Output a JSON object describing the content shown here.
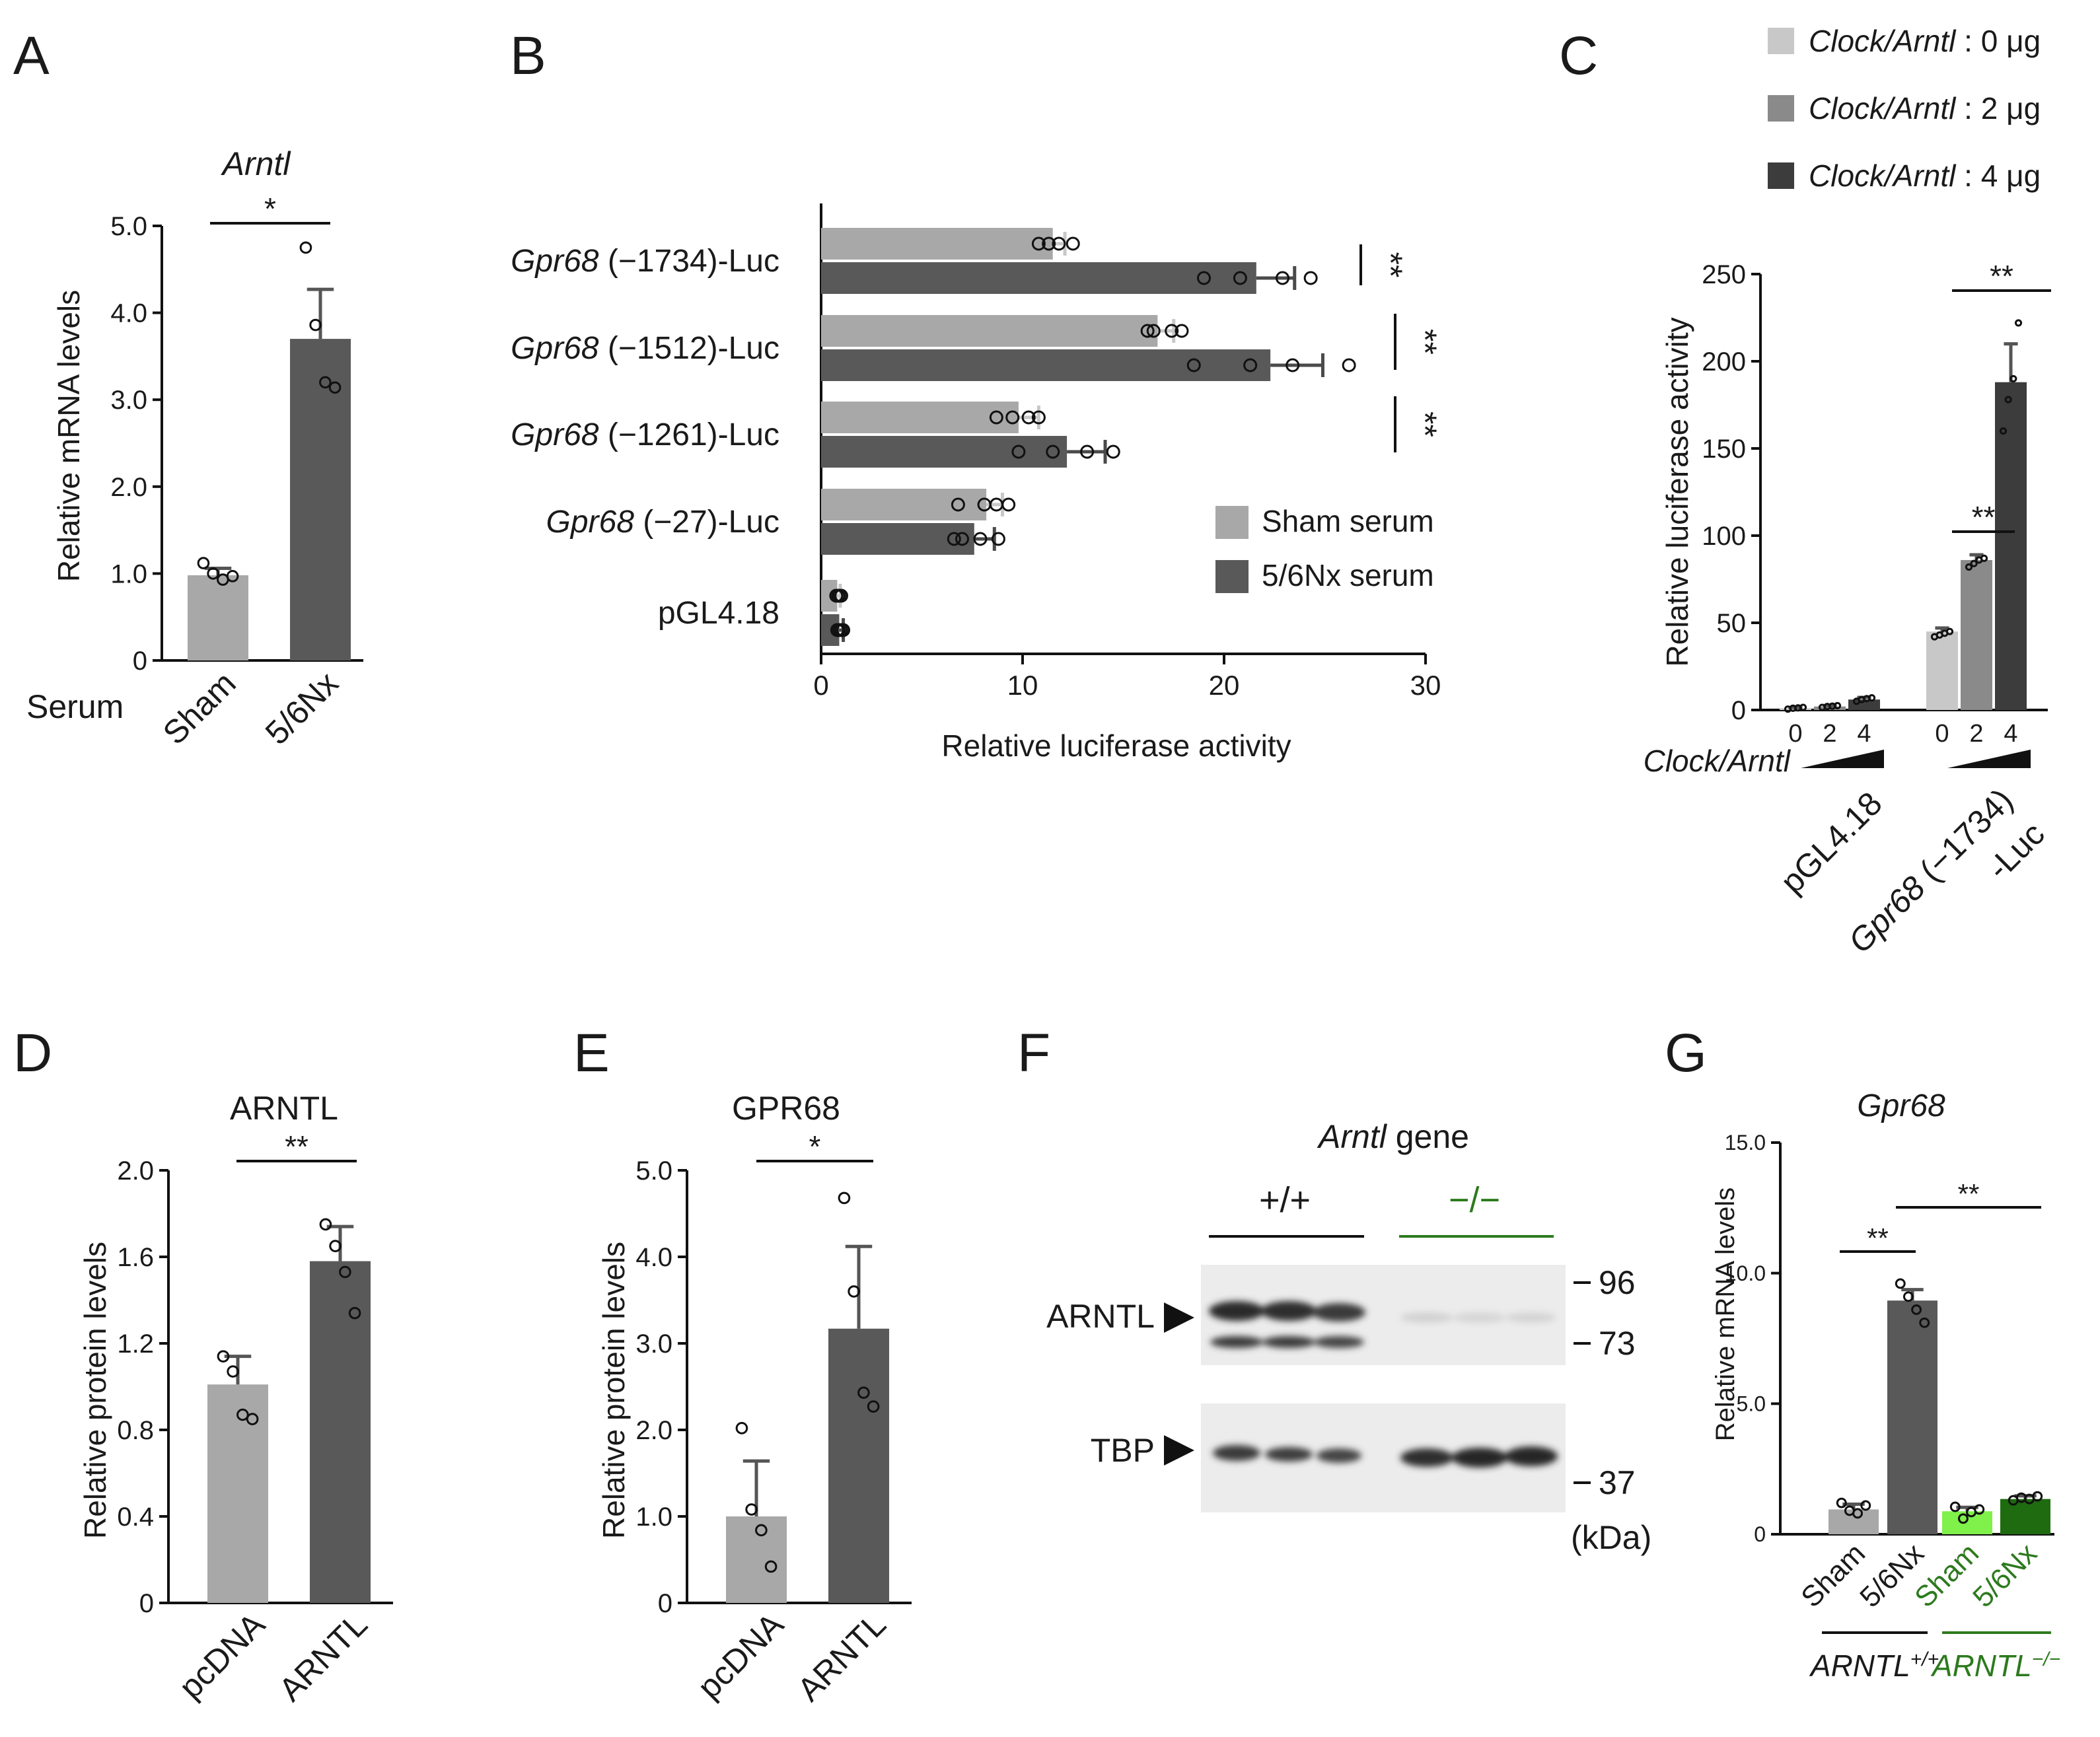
{
  "colors": {
    "sham": "#a8a8a8",
    "nx": "#595959",
    "light": "#c8c8c8",
    "mid": "#8a8a8a",
    "dark": "#3c3c3c",
    "green": "#2d7a1e",
    "greenLight": "#80f04a",
    "greenDark": "#1f6b10"
  },
  "chart_data": [
    {
      "panel": "A",
      "type": "bar",
      "title": "Arntl",
      "ylabel": "Relative mRNA levels",
      "ylim": [
        0,
        5
      ],
      "yticks": [
        "0",
        "1.0",
        "2.0",
        "3.0",
        "4.0",
        "5.0"
      ],
      "xgroup_label": "Serum",
      "categories": [
        "Sham",
        "5/6Nx"
      ],
      "values": [
        0.98,
        3.7
      ],
      "errors": [
        0.08,
        0.57
      ],
      "points": [
        [
          1.12,
          1.0,
          0.93,
          0.97
        ],
        [
          4.75,
          3.86,
          3.2,
          3.14
        ]
      ],
      "sig": "*"
    },
    {
      "panel": "B",
      "type": "bar",
      "orientation": "horizontal",
      "xlabel": "Relative luciferase activity",
      "xlim": [
        0,
        30
      ],
      "xticks": [
        "0",
        "10",
        "20",
        "30"
      ],
      "categories": [
        {
          "gene": "Gpr68",
          "rest": " (−1734)-Luc"
        },
        {
          "gene": "Gpr68",
          "rest": " (−1512)-Luc"
        },
        {
          "gene": "Gpr68",
          "rest": " (−1261)-Luc"
        },
        {
          "gene": "Gpr68",
          "rest": " (−27)-Luc"
        },
        {
          "gene": "",
          "rest": "pGL4.18"
        }
      ],
      "series": [
        {
          "name": "Sham serum",
          "values": [
            11.5,
            16.7,
            9.8,
            8.2,
            0.8
          ],
          "errors": [
            0.6,
            0.8,
            1.0,
            0.8,
            0.15
          ],
          "points": [
            [
              10.8,
              11.3,
              11.8,
              12.5
            ],
            [
              16.2,
              16.5,
              17.4,
              17.9
            ],
            [
              8.7,
              9.5,
              10.3,
              10.8
            ],
            [
              6.8,
              8.1,
              8.7,
              9.3
            ],
            [
              0.75,
              0.85,
              0.9,
              1.0
            ]
          ]
        },
        {
          "name": "5/6Nx serum",
          "values": [
            21.6,
            22.3,
            12.2,
            7.6,
            0.9
          ],
          "errors": [
            1.9,
            2.6,
            1.9,
            1.0,
            0.2
          ],
          "points": [
            [
              19.0,
              20.8,
              22.9,
              24.3
            ],
            [
              18.5,
              21.3,
              23.4,
              26.2
            ],
            [
              9.8,
              11.5,
              13.2,
              14.5
            ],
            [
              6.6,
              7.0,
              7.9,
              8.8
            ],
            [
              0.8,
              0.9,
              1.0,
              1.1
            ]
          ]
        }
      ],
      "sig": [
        "**",
        "**",
        "**"
      ]
    },
    {
      "panel": "C",
      "type": "bar",
      "ylabel": "Relative luciferase activity",
      "ylim": [
        0,
        250
      ],
      "yticks": [
        "0",
        "50",
        "100",
        "150",
        "200",
        "250"
      ],
      "xgroup_label": "Clock/Arntl",
      "doses": [
        "0",
        "2",
        "4"
      ],
      "groups": [
        {
          "label": "pGL4.18",
          "values": [
            1,
            2,
            6
          ],
          "errors": [
            0.4,
            0.5,
            1.2
          ],
          "points": [
            [
              0.5,
              1,
              1.2,
              1.5
            ],
            [
              1.5,
              2,
              2.2,
              2.5
            ],
            [
              5,
              6,
              6.5,
              7
            ]
          ]
        },
        {
          "gene": "Gpr68",
          "label": " (−1734)",
          "label2": "-Luc",
          "values": [
            45,
            86,
            188
          ],
          "errors": [
            2,
            3,
            22
          ],
          "points": [
            [
              42,
              43,
              44,
              45
            ],
            [
              82,
              84,
              86,
              87
            ],
            [
              160,
              178,
              190,
              222
            ]
          ]
        }
      ],
      "legend": [
        {
          "gene": "Clock/Arntl",
          "dose": " : 0 μg"
        },
        {
          "gene": "Clock/Arntl",
          "dose": " : 2 μg"
        },
        {
          "gene": "Clock/Arntl",
          "dose": " : 4 μg"
        }
      ],
      "sig": [
        "**",
        "**"
      ]
    },
    {
      "panel": "D",
      "type": "bar",
      "title": "ARNTL",
      "ylabel": "Relative protein levels",
      "ylim": [
        0,
        2.0
      ],
      "yticks": [
        "0",
        "0.4",
        "0.8",
        "1.2",
        "1.6",
        "2.0"
      ],
      "categories": [
        "pcDNA",
        "ARNTL"
      ],
      "values": [
        1.01,
        1.58
      ],
      "errors": [
        0.13,
        0.16
      ],
      "points": [
        [
          1.14,
          1.07,
          0.87,
          0.85
        ],
        [
          1.75,
          1.65,
          1.53,
          1.34
        ]
      ],
      "sig": "**"
    },
    {
      "panel": "E",
      "type": "bar",
      "title": "GPR68",
      "ylabel": "Relative protein levels",
      "ylim": [
        0,
        5.0
      ],
      "yticks": [
        "0",
        "1.0",
        "2.0",
        "3.0",
        "4.0",
        "5.0"
      ],
      "categories": [
        "pcDNA",
        "ARNTL"
      ],
      "values": [
        1.0,
        3.17
      ],
      "errors": [
        0.64,
        0.95
      ],
      "points": [
        [
          2.02,
          1.08,
          0.84,
          0.42
        ],
        [
          4.68,
          3.6,
          2.43,
          2.27
        ]
      ],
      "sig": "*"
    },
    {
      "panel": "G",
      "type": "bar",
      "title": "Gpr68",
      "ylabel": "Relative mRNA levels",
      "ylim": [
        0,
        15
      ],
      "yticks": [
        "0",
        "5.0",
        "10.0",
        "15.0"
      ],
      "categories": [
        "Sham",
        "5/6Nx",
        "Sham",
        "5/6Nx"
      ],
      "values": [
        0.95,
        8.95,
        0.88,
        1.35
      ],
      "errors": [
        0.2,
        0.42,
        0.15,
        0.12
      ],
      "points": [
        [
          1.2,
          0.9,
          0.8,
          1.1
        ],
        [
          9.6,
          9.1,
          8.6,
          8.1
        ],
        [
          1.05,
          0.6,
          0.85,
          0.95
        ],
        [
          1.3,
          1.4,
          1.35,
          1.45
        ]
      ],
      "genotypes": [
        {
          "sym": "ARNTL",
          "sup": "+/+"
        },
        {
          "sym": "ARNTL",
          "sup": "−/−"
        }
      ],
      "sig": [
        "**",
        "**"
      ]
    }
  ],
  "blot": {
    "panel": "F",
    "title_gene": "Arntl",
    "title_rest": " gene",
    "groups": [
      "+/+",
      "−/−"
    ],
    "bands": [
      "ARNTL",
      "TBP"
    ],
    "markers": [
      "96",
      "73",
      "37"
    ],
    "unit": "(kDa)"
  },
  "panel_letters": [
    "A",
    "B",
    "C",
    "D",
    "E",
    "F",
    "G"
  ]
}
